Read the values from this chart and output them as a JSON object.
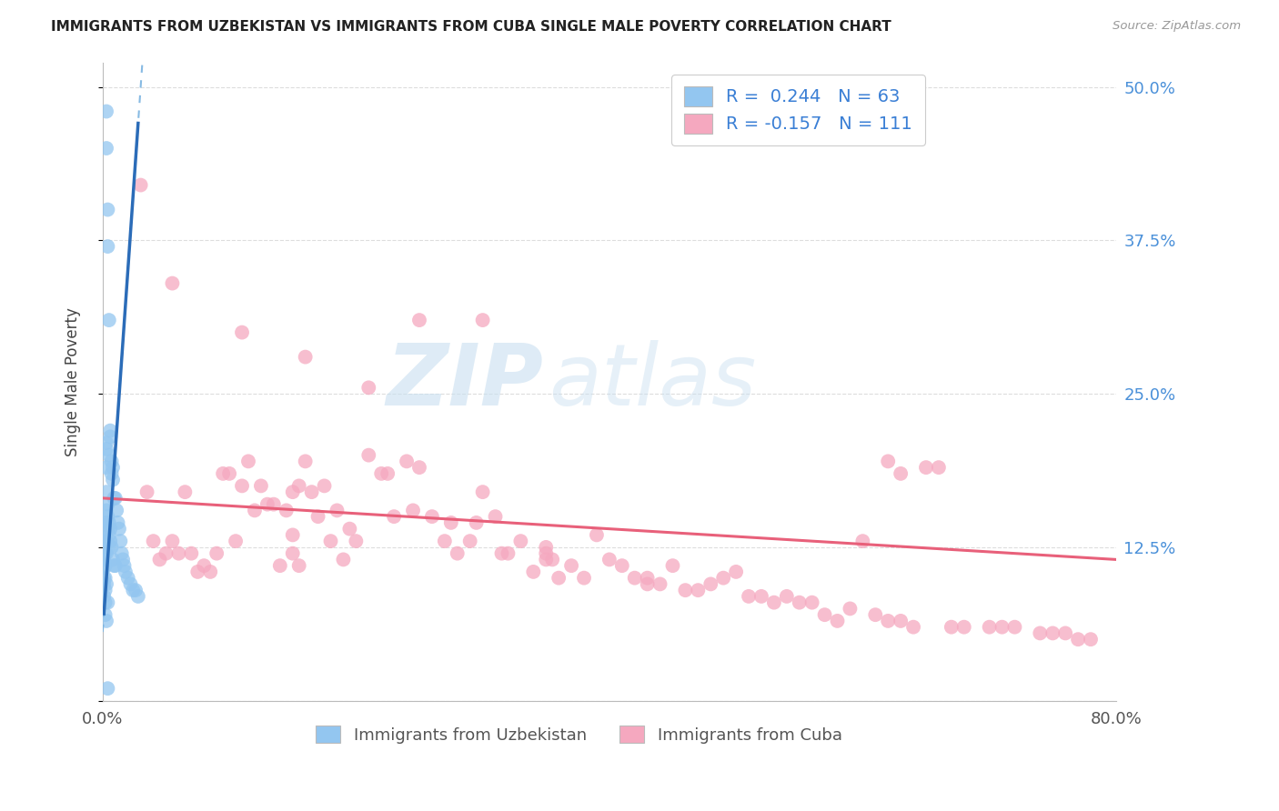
{
  "title": "IMMIGRANTS FROM UZBEKISTAN VS IMMIGRANTS FROM CUBA SINGLE MALE POVERTY CORRELATION CHART",
  "source": "Source: ZipAtlas.com",
  "ylabel": "Single Male Poverty",
  "x_min": 0.0,
  "x_max": 0.8,
  "y_min": 0.0,
  "y_max": 0.52,
  "ytick_vals": [
    0.0,
    0.125,
    0.25,
    0.375,
    0.5
  ],
  "ytick_labels_right": [
    "",
    "12.5%",
    "25.0%",
    "37.5%",
    "50.0%"
  ],
  "xtick_vals": [
    0.0,
    0.2,
    0.4,
    0.6,
    0.8
  ],
  "xtick_labels": [
    "0.0%",
    "",
    "",
    "",
    "80.0%"
  ],
  "uzbekistan_color": "#93c6f0",
  "cuba_color": "#f5a8bf",
  "trend_blue_solid_color": "#2b6cb8",
  "trend_blue_dash_color": "#7ab3e0",
  "trend_pink_color": "#e8607a",
  "watermark_zip": "ZIP",
  "watermark_atlas": "atlas",
  "legend_r_label_uzb": "R =  0.244   N = 63",
  "legend_r_label_cuba": "R = -0.157   N = 111",
  "legend_text_color": "#3a7fd5",
  "bottom_legend_uzb": "Immigrants from Uzbekistan",
  "bottom_legend_cuba": "Immigrants from Cuba",
  "title_color": "#222222",
  "source_color": "#999999",
  "right_tick_color": "#4a90d9",
  "grid_color": "#dddddd",
  "uzbekistan_x": [
    0.001,
    0.001,
    0.001,
    0.001,
    0.001,
    0.002,
    0.002,
    0.002,
    0.002,
    0.002,
    0.002,
    0.002,
    0.003,
    0.003,
    0.003,
    0.003,
    0.003,
    0.003,
    0.003,
    0.003,
    0.003,
    0.003,
    0.004,
    0.004,
    0.004,
    0.004,
    0.004,
    0.005,
    0.005,
    0.005,
    0.005,
    0.006,
    0.006,
    0.006,
    0.006,
    0.007,
    0.007,
    0.007,
    0.008,
    0.008,
    0.008,
    0.009,
    0.009,
    0.01,
    0.01,
    0.011,
    0.012,
    0.013,
    0.014,
    0.015,
    0.016,
    0.017,
    0.018,
    0.02,
    0.022,
    0.024,
    0.026,
    0.028,
    0.005,
    0.003,
    0.004,
    0.003,
    0.004
  ],
  "uzbekistan_y": [
    0.115,
    0.108,
    0.1,
    0.095,
    0.085,
    0.13,
    0.12,
    0.11,
    0.1,
    0.09,
    0.08,
    0.07,
    0.48,
    0.45,
    0.21,
    0.205,
    0.19,
    0.17,
    0.155,
    0.145,
    0.13,
    0.12,
    0.4,
    0.37,
    0.16,
    0.15,
    0.14,
    0.31,
    0.2,
    0.145,
    0.135,
    0.22,
    0.215,
    0.14,
    0.13,
    0.195,
    0.185,
    0.125,
    0.19,
    0.18,
    0.115,
    0.165,
    0.11,
    0.165,
    0.11,
    0.155,
    0.145,
    0.14,
    0.13,
    0.12,
    0.115,
    0.11,
    0.105,
    0.1,
    0.095,
    0.09,
    0.09,
    0.085,
    0.125,
    0.095,
    0.08,
    0.065,
    0.01
  ],
  "cuba_x": [
    0.03,
    0.035,
    0.04,
    0.045,
    0.05,
    0.055,
    0.06,
    0.065,
    0.07,
    0.075,
    0.08,
    0.085,
    0.09,
    0.095,
    0.1,
    0.105,
    0.11,
    0.115,
    0.12,
    0.125,
    0.13,
    0.135,
    0.14,
    0.145,
    0.15,
    0.155,
    0.16,
    0.165,
    0.17,
    0.175,
    0.18,
    0.185,
    0.19,
    0.195,
    0.2,
    0.21,
    0.22,
    0.225,
    0.23,
    0.24,
    0.245,
    0.25,
    0.26,
    0.27,
    0.275,
    0.28,
    0.29,
    0.295,
    0.3,
    0.31,
    0.315,
    0.32,
    0.33,
    0.34,
    0.35,
    0.355,
    0.36,
    0.37,
    0.38,
    0.39,
    0.4,
    0.41,
    0.42,
    0.43,
    0.44,
    0.45,
    0.46,
    0.47,
    0.48,
    0.49,
    0.5,
    0.51,
    0.52,
    0.53,
    0.54,
    0.55,
    0.56,
    0.57,
    0.58,
    0.59,
    0.6,
    0.61,
    0.62,
    0.63,
    0.64,
    0.65,
    0.66,
    0.67,
    0.68,
    0.7,
    0.71,
    0.72,
    0.74,
    0.75,
    0.76,
    0.77,
    0.78,
    0.25,
    0.3,
    0.35,
    0.055,
    0.43,
    0.11,
    0.16,
    0.21,
    0.15,
    0.15,
    0.155,
    0.35,
    0.62,
    0.63
  ],
  "cuba_y": [
    0.42,
    0.17,
    0.13,
    0.115,
    0.12,
    0.13,
    0.12,
    0.17,
    0.12,
    0.105,
    0.11,
    0.105,
    0.12,
    0.185,
    0.185,
    0.13,
    0.175,
    0.195,
    0.155,
    0.175,
    0.16,
    0.16,
    0.11,
    0.155,
    0.17,
    0.175,
    0.195,
    0.17,
    0.15,
    0.175,
    0.13,
    0.155,
    0.115,
    0.14,
    0.13,
    0.2,
    0.185,
    0.185,
    0.15,
    0.195,
    0.155,
    0.19,
    0.15,
    0.13,
    0.145,
    0.12,
    0.13,
    0.145,
    0.17,
    0.15,
    0.12,
    0.12,
    0.13,
    0.105,
    0.12,
    0.115,
    0.1,
    0.11,
    0.1,
    0.135,
    0.115,
    0.11,
    0.1,
    0.095,
    0.095,
    0.11,
    0.09,
    0.09,
    0.095,
    0.1,
    0.105,
    0.085,
    0.085,
    0.08,
    0.085,
    0.08,
    0.08,
    0.07,
    0.065,
    0.075,
    0.13,
    0.07,
    0.065,
    0.065,
    0.06,
    0.19,
    0.19,
    0.06,
    0.06,
    0.06,
    0.06,
    0.06,
    0.055,
    0.055,
    0.055,
    0.05,
    0.05,
    0.31,
    0.31,
    0.115,
    0.34,
    0.1,
    0.3,
    0.28,
    0.255,
    0.135,
    0.12,
    0.11,
    0.125,
    0.195,
    0.185
  ]
}
